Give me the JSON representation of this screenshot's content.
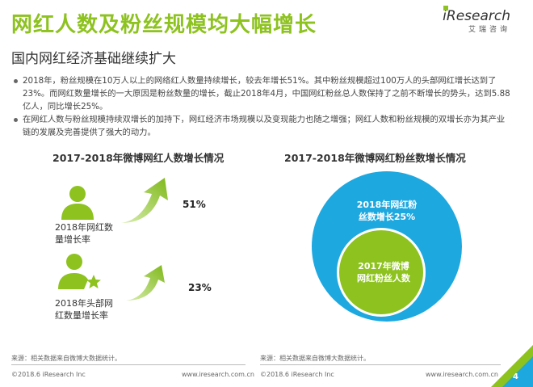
{
  "header": {
    "title": "网红人数及粉丝规模均大幅增长",
    "subtitle": "国内网红经济基础继续扩大",
    "brand_name": "iResearch",
    "brand_cn": "艾瑞咨询"
  },
  "bullets": [
    "2018年，粉丝规模在10万人以上的网络红人数量持续增长，较去年增长51%。其中粉丝规模超过100万人的头部网红增长达到了23%。而网红数量增长的一大原因是粉丝数量的增长，截止2018年4月，中国网红粉丝总人数保持了之前不断增长的势头，达到5.88亿人，同比增长25%。",
    "在网红人数与粉丝规模持续双增长的加持下，网红经济市场规模以及变现能力也随之增强；网红人数和粉丝规模的双增长亦为其产业链的发展及完善提供了强大的动力。"
  ],
  "left_panel": {
    "title": "2017-2018年微博网红人数增长情况",
    "items": [
      {
        "label_line1": "2018年网红数",
        "label_line2": "量增长率",
        "value": "51%",
        "icon": "person-icon"
      },
      {
        "label_line1": "2018年头部网",
        "label_line2": "红数量增长率",
        "value": "23%",
        "icon": "person-star-icon"
      }
    ],
    "accent_color": "#8dc21f"
  },
  "right_panel": {
    "title": "2017-2018年微博网红粉丝数增长情况",
    "outer_label_line1": "2018年网红粉",
    "outer_label_line2": "丝数增长25%",
    "inner_label_line1": "2017年微博",
    "inner_label_line2": "网红粉丝人数",
    "outer_color": "#1ea8e0",
    "inner_color": "#8dc21f"
  },
  "footer": {
    "source_left": "来源：相关数据来自微博大数据统计。",
    "source_right": "来源：相关数据来自微博大数据统计。",
    "copyright": "©2018.6 iResearch Inc",
    "url": "www.iresearch.com.cn",
    "page_number": "4"
  }
}
